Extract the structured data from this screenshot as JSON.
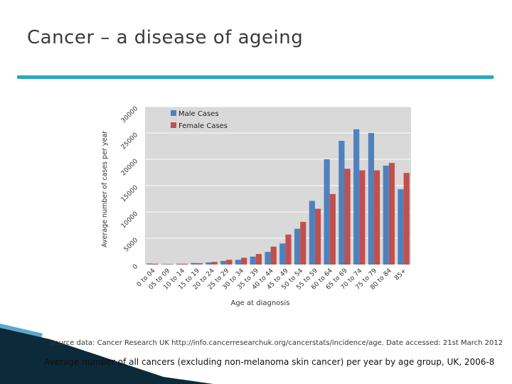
{
  "slide": {
    "title": "Cancer – a disease of ageing",
    "source": "Source data: Cancer Research UK http://info.cancerresearchuk.org/cancerstats/incidence/age. Date accessed: 21st March 2012",
    "caption": "Average number of all cancers (excluding non-melanoma skin cancer) per year by age group, UK, 2006-8"
  },
  "colors": {
    "rule": "#29a8c2",
    "plot_bg": "#d9d9d9",
    "male": "#4f81bd",
    "female": "#c0504d",
    "corner_dark": "#0d2a3a",
    "corner_light": "#5aa9c9"
  },
  "chart_data": {
    "type": "bar",
    "title": "",
    "xlabel": "Age at diagnosis",
    "ylabel": "Average number of cases per year",
    "ylim": [
      0,
      30000
    ],
    "yticks": [
      0,
      5000,
      10000,
      15000,
      20000,
      25000,
      30000
    ],
    "ytick_labels": [
      "0",
      "5000",
      "10000",
      "15000",
      "20000",
      "25000",
      "30000"
    ],
    "legend_position": "top-left",
    "categories": [
      "0 to 04",
      "05 to 09",
      "10 to 14",
      "15 to 19",
      "20 to 24",
      "25 to 29",
      "30 to 34",
      "35 to 39",
      "40 to 44",
      "45 to 49",
      "50 to 54",
      "55 to 59",
      "60 to 64",
      "65 to 69",
      "70 to 74",
      "75 to 79",
      "80 to 84",
      "85+"
    ],
    "series": [
      {
        "name": "Male Cases",
        "values": [
          200,
          100,
          150,
          300,
          400,
          700,
          900,
          1500,
          2400,
          4000,
          6800,
          12100,
          20000,
          23500,
          25700,
          25000,
          18800,
          14300
        ]
      },
      {
        "name": "Female Cases",
        "values": [
          150,
          100,
          150,
          250,
          500,
          900,
          1300,
          2000,
          3400,
          5700,
          8100,
          10600,
          13400,
          18200,
          17900,
          17900,
          19300,
          17400
        ]
      }
    ]
  }
}
